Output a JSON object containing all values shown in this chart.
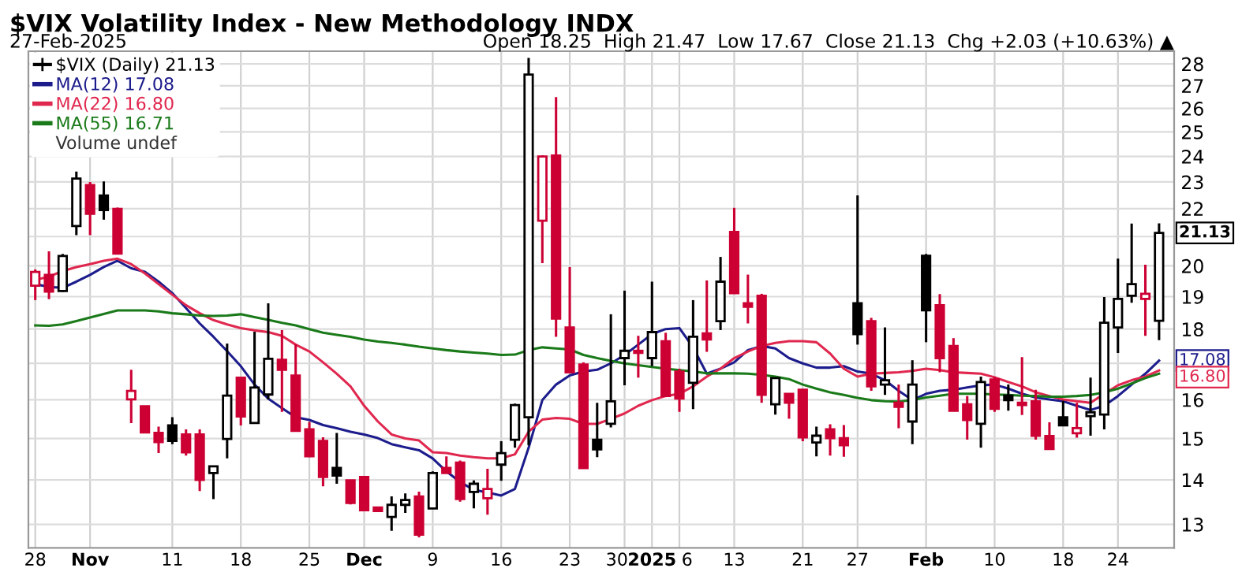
{
  "chart_data": {
    "type": "candlestick",
    "title": "$VIX Volatility Index - New Methodology INDX",
    "subtitle": "27-Feb-2025",
    "categories": [
      "28",
      null,
      null,
      null,
      "Nov",
      null,
      null,
      null,
      null,
      null,
      "11",
      null,
      null,
      null,
      null,
      "18",
      null,
      null,
      null,
      null,
      "25",
      null,
      null,
      null,
      "Dec",
      null,
      null,
      null,
      null,
      "9",
      null,
      null,
      null,
      null,
      "16",
      null,
      null,
      null,
      null,
      "23",
      null,
      null,
      null,
      "30",
      null,
      "2025",
      null,
      "6",
      null,
      null,
      null,
      "13",
      null,
      null,
      null,
      null,
      "21",
      null,
      null,
      null,
      "27",
      null,
      null,
      null,
      null,
      "Feb",
      null,
      null,
      null,
      null,
      "10",
      null,
      null,
      null,
      null,
      "18",
      null,
      null,
      null,
      "24",
      null,
      null,
      null
    ],
    "series": [
      {
        "name": "$VIX (Daily) 21.13",
        "ohlc": [
          [
            19.35,
            19.88,
            18.89,
            19.8
          ],
          [
            19.7,
            20.49,
            18.92,
            19.16
          ],
          [
            19.18,
            20.4,
            19.15,
            20.33
          ],
          [
            21.37,
            23.4,
            21.05,
            23.13
          ],
          [
            22.88,
            23.0,
            21.05,
            21.81
          ],
          [
            22.49,
            23.02,
            21.6,
            21.95
          ],
          [
            21.99,
            22.04,
            20.38,
            20.41
          ],
          [
            16.01,
            16.82,
            15.39,
            16.24
          ],
          [
            15.83,
            15.83,
            15.13,
            15.15
          ],
          [
            15.14,
            15.3,
            14.64,
            14.91
          ],
          [
            15.33,
            15.54,
            14.86,
            14.94
          ],
          [
            15.1,
            15.23,
            14.58,
            14.66
          ],
          [
            15.1,
            15.23,
            13.74,
            14.0
          ],
          [
            14.16,
            14.32,
            13.56,
            14.32
          ],
          [
            14.99,
            17.57,
            14.51,
            16.11
          ],
          [
            16.6,
            16.6,
            15.33,
            15.56
          ],
          [
            15.39,
            17.92,
            15.37,
            16.33
          ],
          [
            16.14,
            18.79,
            16.01,
            17.13
          ],
          [
            17.1,
            17.97,
            15.68,
            16.82
          ],
          [
            16.66,
            17.55,
            15.19,
            15.19
          ],
          [
            15.23,
            15.42,
            14.54,
            14.56
          ],
          [
            14.94,
            15.03,
            13.85,
            14.07
          ],
          [
            14.28,
            15.14,
            13.91,
            14.1
          ],
          [
            13.99,
            13.99,
            13.44,
            13.47
          ],
          [
            14.07,
            14.07,
            13.29,
            13.31
          ],
          [
            13.37,
            13.37,
            13.27,
            13.29
          ],
          [
            13.16,
            13.62,
            12.86,
            13.43
          ],
          [
            13.43,
            13.69,
            13.25,
            13.54
          ],
          [
            13.62,
            13.73,
            12.72,
            12.78
          ],
          [
            13.35,
            14.2,
            13.35,
            14.16
          ],
          [
            14.28,
            14.56,
            14.16,
            14.16
          ],
          [
            14.41,
            14.46,
            13.5,
            13.56
          ],
          [
            13.72,
            13.99,
            13.35,
            13.91
          ],
          [
            13.58,
            14.26,
            13.21,
            13.79
          ],
          [
            14.36,
            14.93,
            13.98,
            14.64
          ],
          [
            14.97,
            15.9,
            14.77,
            15.86
          ],
          [
            15.54,
            28.28,
            14.83,
            27.51
          ],
          [
            21.56,
            24.04,
            20.09,
            24.0
          ],
          [
            24.04,
            26.49,
            17.77,
            18.32
          ],
          [
            18.05,
            19.96,
            16.75,
            16.75
          ],
          [
            16.97,
            17.03,
            14.28,
            14.28
          ],
          [
            14.97,
            15.92,
            14.54,
            14.73
          ],
          [
            15.37,
            18.45,
            15.28,
            15.96
          ],
          [
            17.15,
            19.19,
            16.39,
            17.36
          ],
          [
            17.36,
            17.8,
            16.6,
            17.3
          ],
          [
            17.15,
            19.48,
            16.92,
            17.91
          ],
          [
            17.64,
            17.89,
            16.1,
            16.1
          ],
          [
            16.77,
            16.85,
            15.68,
            16.03
          ],
          [
            16.46,
            18.89,
            15.75,
            17.77
          ],
          [
            17.87,
            19.52,
            17.33,
            17.69
          ],
          [
            18.24,
            20.3,
            17.97,
            19.48
          ],
          [
            21.16,
            22.03,
            19.11,
            19.11
          ],
          [
            18.79,
            19.71,
            18.17,
            18.68
          ],
          [
            19.03,
            19.09,
            15.92,
            16.13
          ],
          [
            15.88,
            16.59,
            15.61,
            16.59
          ],
          [
            16.16,
            16.16,
            15.5,
            15.92
          ],
          [
            16.27,
            16.27,
            14.93,
            15.03
          ],
          [
            14.9,
            15.3,
            14.56,
            15.07
          ],
          [
            15.23,
            15.36,
            14.58,
            15.01
          ],
          [
            15.01,
            15.34,
            14.55,
            14.83
          ],
          [
            18.79,
            22.49,
            17.54,
            17.85
          ],
          [
            18.24,
            18.34,
            16.24,
            16.36
          ],
          [
            16.41,
            18.05,
            16.13,
            16.53
          ],
          [
            15.92,
            16.41,
            15.26,
            15.81
          ],
          [
            15.43,
            17.09,
            14.86,
            16.41
          ],
          [
            20.34,
            20.4,
            17.61,
            18.57
          ],
          [
            18.73,
            19.08,
            16.75,
            17.15
          ],
          [
            17.5,
            17.73,
            15.71,
            15.71
          ],
          [
            15.88,
            16.1,
            14.97,
            15.47
          ],
          [
            15.37,
            16.63,
            14.77,
            16.48
          ],
          [
            16.55,
            16.62,
            15.68,
            15.76
          ],
          [
            16.11,
            16.41,
            15.71,
            15.99
          ],
          [
            15.92,
            17.18,
            15.6,
            15.86
          ],
          [
            15.96,
            16.27,
            14.97,
            15.07
          ],
          [
            15.06,
            15.41,
            14.73,
            14.74
          ],
          [
            15.54,
            15.97,
            15.33,
            15.33
          ],
          [
            15.13,
            15.92,
            15.02,
            15.26
          ],
          [
            15.57,
            16.6,
            15.07,
            15.67
          ],
          [
            15.61,
            18.99,
            15.23,
            18.19
          ],
          [
            18.05,
            20.24,
            17.3,
            18.93
          ],
          [
            19.03,
            21.46,
            18.81,
            19.4
          ],
          [
            18.93,
            20.04,
            17.8,
            19.09
          ],
          [
            18.25,
            21.47,
            17.67,
            21.13
          ]
        ],
        "colors": [
          "#cc0033",
          "#cc0033",
          "#000000",
          "#000000",
          "#cc0033",
          "#000000",
          "#cc0033",
          "#cc0033",
          "#cc0033",
          "#cc0033",
          "#000000",
          "#cc0033",
          "#cc0033",
          "#000000",
          "#000000",
          "#cc0033",
          "#000000",
          "#000000",
          "#cc0033",
          "#cc0033",
          "#cc0033",
          "#cc0033",
          "#000000",
          "#cc0033",
          "#cc0033",
          "#cc0033",
          "#000000",
          "#000000",
          "#cc0033",
          "#000000",
          "#cc0033",
          "#cc0033",
          "#000000",
          "#cc0033",
          "#000000",
          "#000000",
          "#000000",
          "#cc0033",
          "#cc0033",
          "#cc0033",
          "#cc0033",
          "#000000",
          "#000000",
          "#000000",
          "#cc0033",
          "#000000",
          "#cc0033",
          "#cc0033",
          "#000000",
          "#cc0033",
          "#000000",
          "#cc0033",
          "#cc0033",
          "#cc0033",
          "#000000",
          "#cc0033",
          "#cc0033",
          "#000000",
          "#cc0033",
          "#cc0033",
          "#000000",
          "#cc0033",
          "#000000",
          "#cc0033",
          "#000000",
          "#000000",
          "#cc0033",
          "#cc0033",
          "#cc0033",
          "#000000",
          "#cc0033",
          "#000000",
          "#cc0033",
          "#cc0033",
          "#cc0033",
          "#000000",
          "#cc0033",
          "#000000",
          "#000000",
          "#000000",
          "#000000",
          "#cc0033",
          "#000000"
        ]
      },
      {
        "type": "line",
        "name": "MA(12) 17.08",
        "color": "#1c1c8c",
        "values": [
          19.4,
          19.31,
          19.28,
          19.48,
          19.7,
          19.96,
          20.17,
          19.92,
          19.8,
          19.48,
          19.11,
          18.64,
          18.17,
          17.77,
          17.35,
          16.92,
          16.41,
          16.03,
          15.78,
          15.54,
          15.47,
          15.34,
          15.26,
          15.17,
          15.1,
          15.01,
          14.86,
          14.78,
          14.71,
          14.51,
          14.2,
          13.95,
          13.77,
          13.71,
          13.64,
          13.79,
          14.77,
          15.99,
          16.41,
          16.66,
          16.77,
          16.82,
          17.0,
          17.24,
          17.54,
          17.85,
          18.0,
          18.03,
          17.46,
          16.71,
          16.85,
          17.03,
          17.38,
          17.5,
          17.43,
          17.15,
          17.0,
          16.88,
          16.88,
          16.92,
          16.77,
          16.71,
          16.53,
          16.24,
          15.99,
          16.16,
          16.24,
          16.27,
          16.33,
          16.39,
          16.41,
          16.3,
          16.16,
          16.06,
          16.01,
          15.96,
          15.84,
          15.73,
          15.84,
          16.1,
          16.41,
          16.71,
          17.08
        ]
      },
      {
        "type": "line",
        "name": "MA(22) 16.80",
        "color": "#e0284f",
        "values": [
          19.54,
          19.64,
          19.83,
          19.96,
          20.06,
          20.17,
          20.24,
          20.06,
          19.75,
          19.4,
          19.06,
          18.73,
          18.48,
          18.27,
          18.14,
          18.03,
          17.96,
          17.91,
          17.8,
          17.54,
          17.34,
          17.03,
          16.71,
          16.36,
          15.84,
          15.43,
          15.1,
          15.0,
          14.95,
          14.66,
          14.64,
          14.58,
          14.54,
          14.51,
          14.51,
          14.61,
          15.17,
          15.48,
          15.52,
          15.5,
          15.37,
          15.37,
          15.5,
          15.64,
          15.84,
          15.99,
          16.1,
          16.16,
          16.36,
          16.63,
          16.85,
          17.15,
          17.34,
          17.5,
          17.59,
          17.64,
          17.64,
          17.61,
          17.28,
          16.85,
          16.63,
          16.71,
          16.73,
          16.75,
          16.79,
          16.85,
          16.81,
          16.75,
          16.73,
          16.71,
          16.61,
          16.48,
          16.36,
          16.2,
          16.1,
          16.01,
          15.96,
          15.92,
          16.16,
          16.39,
          16.53,
          16.63,
          16.8
        ]
      },
      {
        "type": "line",
        "name": "MA(55) 16.71",
        "color": "#1a7a1a",
        "values": [
          18.11,
          18.1,
          18.14,
          18.24,
          18.35,
          18.46,
          18.57,
          18.57,
          18.57,
          18.54,
          18.48,
          18.45,
          18.41,
          18.4,
          18.41,
          18.45,
          18.36,
          18.28,
          18.19,
          18.11,
          18.0,
          17.89,
          17.83,
          17.77,
          17.69,
          17.63,
          17.59,
          17.54,
          17.48,
          17.43,
          17.38,
          17.34,
          17.31,
          17.28,
          17.24,
          17.25,
          17.38,
          17.46,
          17.43,
          17.4,
          17.24,
          17.15,
          17.07,
          17.0,
          16.95,
          16.9,
          16.85,
          16.81,
          16.77,
          16.72,
          16.72,
          16.72,
          16.71,
          16.68,
          16.63,
          16.56,
          16.41,
          16.3,
          16.2,
          16.13,
          16.05,
          15.99,
          15.96,
          15.95,
          15.99,
          16.06,
          16.11,
          16.16,
          16.16,
          16.16,
          16.14,
          16.13,
          16.11,
          16.1,
          16.08,
          16.08,
          16.1,
          16.13,
          16.2,
          16.3,
          16.44,
          16.59,
          16.71
        ]
      }
    ],
    "log": true,
    "ylim": [
      12.5,
      28.6
    ],
    "yticks": [
      13,
      14,
      15,
      16,
      {
        "value": 17,
        "label": null
      },
      18,
      19,
      20,
      {
        "value": 21,
        "label": null
      },
      22,
      23,
      24,
      25,
      26,
      27,
      28
    ],
    "grid": true,
    "legend": "top left",
    "annotations": [
      "Open 18.25  High 21.47  Low 17.67  Close 21.13  Chg +2.03 (+10.63%) ▲",
      "Volume undef",
      "21.13",
      "17.08",
      "16.80"
    ]
  }
}
